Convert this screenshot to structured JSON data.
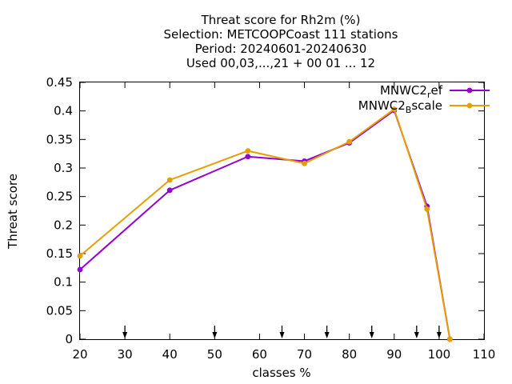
{
  "chart_data": {
    "type": "line",
    "title_lines": [
      "Threat score  for Rh2m (%)",
      "Selection: METCOOPCoast    111 stations",
      "Period: 20240601-20240630",
      "Used 00,03,...,21 + 00 01 ... 12"
    ],
    "xlabel": "classes %",
    "ylabel": "Threat score",
    "xlim": [
      20,
      110
    ],
    "ylim": [
      0,
      0.45
    ],
    "xticks": [
      "20",
      "30",
      "40",
      "50",
      "60",
      "70",
      "80",
      "90",
      "100",
      "110"
    ],
    "yticks": [
      "0",
      "0.05",
      "0.1",
      "0.15",
      "0.2",
      "0.25",
      "0.3",
      "0.35",
      "0.4",
      "0.45"
    ],
    "grid": false,
    "legend_position": "top-right",
    "series": [
      {
        "name": "MNWC2_ref",
        "legend_main": "MNWC2",
        "legend_sub": "r",
        "legend_tail": "ef",
        "color": "#9400d3",
        "points": [
          [
            20,
            0.122
          ],
          [
            40,
            0.261
          ],
          [
            57.4,
            0.32
          ],
          [
            70,
            0.312
          ],
          [
            80,
            0.344
          ],
          [
            90,
            0.401
          ],
          [
            97.3,
            0.233
          ],
          [
            102.4,
            0.0
          ]
        ]
      },
      {
        "name": "MNWC2_Bscale",
        "legend_main": "MNWC2",
        "legend_sub": "B",
        "legend_tail": "scale",
        "color": "#e69f00",
        "points": [
          [
            20,
            0.146
          ],
          [
            40,
            0.279
          ],
          [
            57.4,
            0.33
          ],
          [
            70,
            0.308
          ],
          [
            80,
            0.346
          ],
          [
            90,
            0.403
          ],
          [
            97.3,
            0.228
          ],
          [
            102.4,
            0.0
          ]
        ]
      }
    ],
    "threshold_arrows_x": [
      30,
      50,
      65,
      75,
      85,
      95,
      100
    ]
  }
}
